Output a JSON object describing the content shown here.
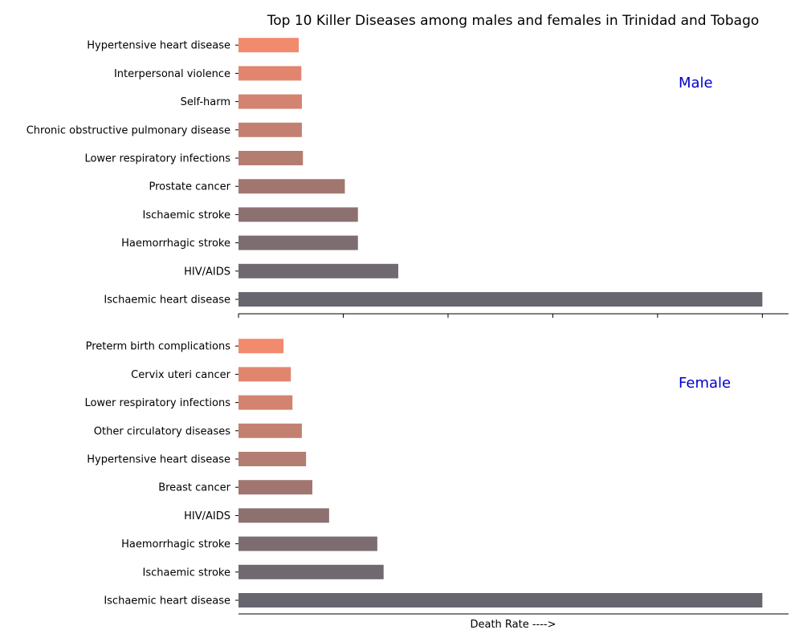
{
  "chart_data": {
    "type": "bar",
    "orientation": "horizontal",
    "title": "Top 10 Killer Diseases among males and females in Trinidad and Tobago",
    "xlabel": "Death Rate ---->",
    "legend": "none",
    "grid": false,
    "xlim": [
      0,
      1.05
    ],
    "panels": [
      {
        "label": "Male",
        "categories": [
          "Ischaemic heart disease",
          "HIV/AIDS",
          "Haemorrhagic stroke",
          "Ischaemic stroke",
          "Prostate cancer",
          "Lower respiratory infections",
          "Chronic obstructive pulmonary disease",
          "Self-harm",
          "Interpersonal violence",
          "Hypertensive heart disease"
        ],
        "values": [
          1.0,
          0.305,
          0.228,
          0.228,
          0.203,
          0.123,
          0.121,
          0.121,
          0.12,
          0.115
        ]
      },
      {
        "label": "Female",
        "categories": [
          "Ischaemic heart disease",
          "Ischaemic stroke",
          "Haemorrhagic stroke",
          "HIV/AIDS",
          "Breast cancer",
          "Hypertensive heart disease",
          "Other circulatory diseases",
          "Lower respiratory infections",
          "Cervix uteri cancer",
          "Preterm birth complications"
        ],
        "values": [
          1.0,
          0.277,
          0.265,
          0.173,
          0.141,
          0.129,
          0.121,
          0.103,
          0.1,
          0.086
        ]
      }
    ],
    "colors": [
      "#67666e",
      "#716970",
      "#7d6d70",
      "#8c7170",
      "#a17670",
      "#b47d72",
      "#c38070",
      "#d3836f",
      "#e2856f",
      "#f28a6e"
    ]
  }
}
